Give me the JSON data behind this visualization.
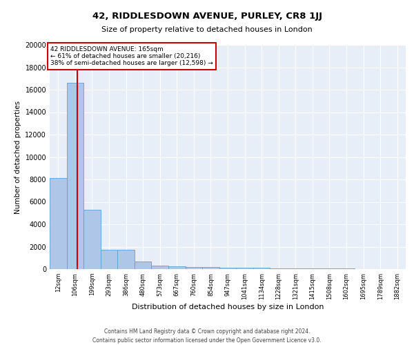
{
  "title_line1": "42, RIDDLESDOWN AVENUE, PURLEY, CR8 1JJ",
  "title_line2": "Size of property relative to detached houses in London",
  "xlabel": "Distribution of detached houses by size in London",
  "ylabel": "Number of detached properties",
  "bin_labels": [
    "12sqm",
    "106sqm",
    "199sqm",
    "293sqm",
    "386sqm",
    "480sqm",
    "573sqm",
    "667sqm",
    "760sqm",
    "854sqm",
    "947sqm",
    "1041sqm",
    "1134sqm",
    "1228sqm",
    "1321sqm",
    "1415sqm",
    "1508sqm",
    "1602sqm",
    "1695sqm",
    "1789sqm",
    "1882sqm"
  ],
  "bar_heights": [
    8100,
    16600,
    5300,
    1750,
    1750,
    700,
    300,
    250,
    200,
    180,
    150,
    130,
    110,
    90,
    75,
    60,
    50,
    40,
    30,
    20,
    10
  ],
  "bar_color": "#aec6e8",
  "bar_edge_color": "#5a9fd4",
  "background_color": "#e8eef8",
  "grid_color": "#ffffff",
  "property_sqm": 165,
  "annotation_text_line1": "42 RIDDLESDOWN AVENUE: 165sqm",
  "annotation_text_line2": "← 61% of detached houses are smaller (20,216)",
  "annotation_text_line3": "38% of semi-detached houses are larger (12,598) →",
  "annotation_box_color": "#ffffff",
  "annotation_box_edge": "#cc0000",
  "vline_color": "#cc0000",
  "ylim": [
    0,
    20000
  ],
  "yticks": [
    0,
    2000,
    4000,
    6000,
    8000,
    10000,
    12000,
    14000,
    16000,
    18000,
    20000
  ],
  "footnote_line1": "Contains HM Land Registry data © Crown copyright and database right 2024.",
  "footnote_line2": "Contains public sector information licensed under the Open Government Licence v3.0."
}
